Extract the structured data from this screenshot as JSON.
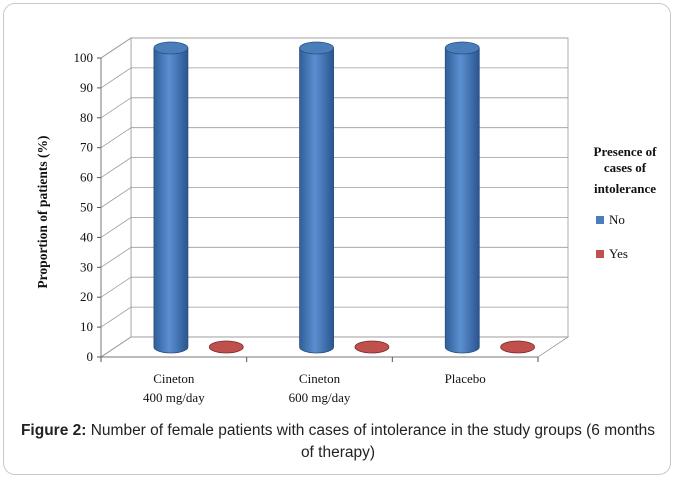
{
  "chart_data": {
    "type": "bar",
    "style": "3d-cylinder",
    "categories": [
      [
        "Cineton",
        "400 mg/day"
      ],
      [
        "Cineton",
        "600 mg/day"
      ],
      [
        "Placebo"
      ]
    ],
    "series": [
      {
        "name": "No",
        "values": [
          100,
          100,
          100
        ],
        "color": "#4a7ebb"
      },
      {
        "name": "Yes",
        "values": [
          0,
          0,
          0
        ],
        "color": "#c0504d"
      }
    ],
    "ylabel": "Proportion of patients (%)",
    "xlabel": "",
    "ylim": [
      0,
      100
    ],
    "yticks": [
      "0",
      "10",
      "20",
      "30",
      "40",
      "50",
      "60",
      "70",
      "80",
      "90",
      "100"
    ],
    "grid": true,
    "legend": {
      "title": [
        "Presence of",
        "cases of",
        "intolerance"
      ],
      "placement": "right"
    }
  },
  "caption": {
    "label": "Figure 2:",
    "text": "Number of female patients with cases of intolerance in the study groups (6 months of therapy)"
  }
}
